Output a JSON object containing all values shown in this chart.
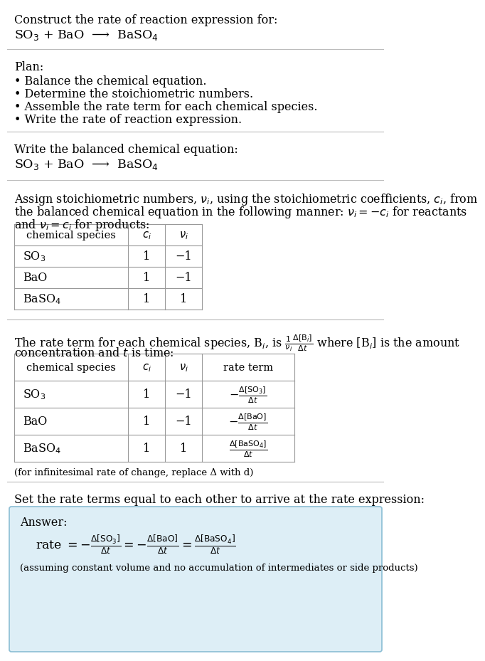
{
  "title_line1": "Construct the rate of reaction expression for:",
  "title_line2": "SO$_3$ + BaO  ⟶  BaSO$_4$",
  "plan_header": "Plan:",
  "plan_items": [
    "• Balance the chemical equation.",
    "• Determine the stoichiometric numbers.",
    "• Assemble the rate term for each chemical species.",
    "• Write the rate of reaction expression."
  ],
  "balanced_header": "Write the balanced chemical equation:",
  "balanced_eq": "SO$_3$ + BaO  ⟶  BaSO$_4$",
  "stoich_line1": "Assign stoichiometric numbers, $\\nu_i$, using the stoichiometric coefficients, $c_i$, from",
  "stoich_line2": "the balanced chemical equation in the following manner: $\\nu_i = -c_i$ for reactants",
  "stoich_line3": "and $\\nu_i = c_i$ for products:",
  "table1_headers": [
    "chemical species",
    "$c_i$",
    "$\\nu_i$"
  ],
  "table1_rows": [
    [
      "SO$_3$",
      "1",
      "−1"
    ],
    [
      "BaO",
      "1",
      "−1"
    ],
    [
      "BaSO$_4$",
      "1",
      "1"
    ]
  ],
  "rate_line1": "The rate term for each chemical species, B$_i$, is $\\frac{1}{\\nu_i}\\frac{\\Delta[\\mathrm{B}_i]}{\\Delta t}$ where [B$_i$] is the amount",
  "rate_line2": "concentration and $t$ is time:",
  "table2_headers": [
    "chemical species",
    "$c_i$",
    "$\\nu_i$",
    "rate term"
  ],
  "table2_rows": [
    [
      "SO$_3$",
      "1",
      "−1",
      "$-\\frac{\\Delta[\\mathrm{SO_3}]}{\\Delta t}$"
    ],
    [
      "BaO",
      "1",
      "−1",
      "$-\\frac{\\Delta[\\mathrm{BaO}]}{\\Delta t}$"
    ],
    [
      "BaSO$_4$",
      "1",
      "1",
      "$\\frac{\\Delta[\\mathrm{BaSO_4}]}{\\Delta t}$"
    ]
  ],
  "infinitesimal_note": "(for infinitesimal rate of change, replace Δ with d)",
  "set_equal_text": "Set the rate terms equal to each other to arrive at the rate expression:",
  "answer_label": "Answer:",
  "answer_eq": "rate $= -\\frac{\\Delta[\\mathrm{SO_3}]}{\\Delta t} = -\\frac{\\Delta[\\mathrm{BaO}]}{\\Delta t} = \\frac{\\Delta[\\mathrm{BaSO_4}]}{\\Delta t}$",
  "answer_note": "(assuming constant volume and no accumulation of intermediates or side products)",
  "bg_color": "#ffffff",
  "answer_box_color": "#ddeef6",
  "answer_box_edge": "#8bbdd4",
  "table_line_color": "#999999",
  "text_color": "#000000",
  "divider_color": "#bbbbbb"
}
